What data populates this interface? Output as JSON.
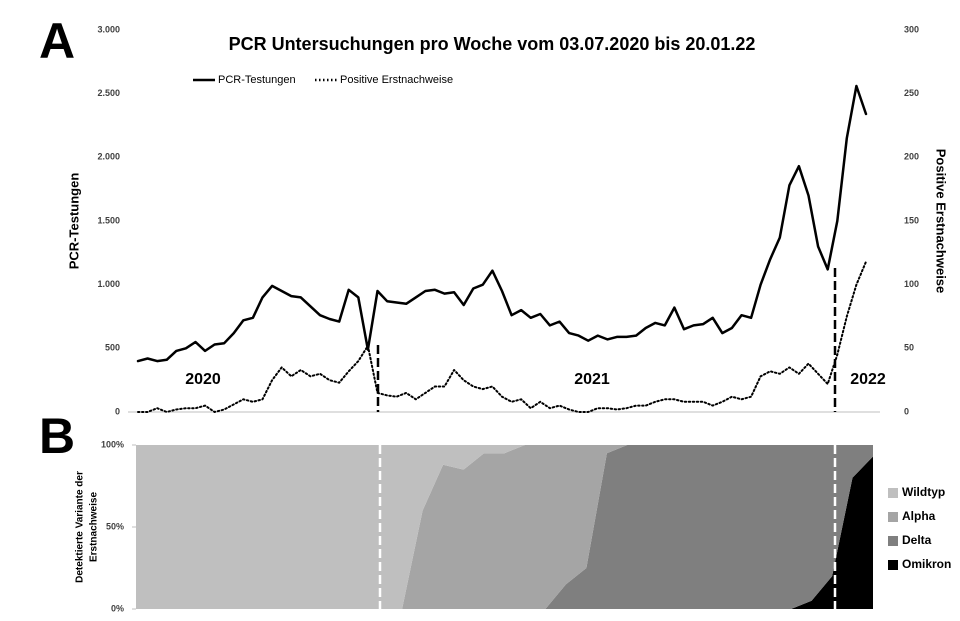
{
  "chart_data": [
    {
      "type": "line",
      "panel_label": "A",
      "title": "PCR Untersuchungen pro Woche vom 03.07.2020 bis 20.01.22",
      "y_label": "PCR-Testungen",
      "y2_label": "Positive Erstnachweise",
      "annotations": [
        "2020",
        "2021",
        "2022"
      ],
      "categories": [
        null,
        null,
        null,
        null,
        null,
        null,
        null,
        null,
        null,
        null,
        null,
        null,
        null,
        null,
        null,
        null,
        null,
        null,
        null,
        null,
        null,
        null,
        null,
        null,
        null,
        null,
        null,
        null,
        null,
        null,
        null,
        null,
        null,
        null,
        null,
        null,
        null,
        null,
        null,
        null,
        null,
        null,
        null,
        null,
        null,
        null,
        null,
        null,
        null,
        null,
        null,
        null,
        null,
        null,
        null,
        null,
        null,
        null,
        null,
        null,
        null,
        null,
        null,
        null,
        null,
        null,
        null,
        null,
        null,
        null,
        null,
        null,
        null,
        null,
        null,
        null,
        null
      ],
      "ylim": [
        0,
        3000
      ],
      "yticks": [
        0,
        500,
        {
          "value": 1000,
          "label": "1.000"
        },
        {
          "value": 1500,
          "label": "1.500"
        },
        {
          "value": 2000,
          "label": "2.000"
        },
        {
          "value": 2500,
          "label": "2.500"
        },
        {
          "value": 3000,
          "label": "3.000"
        }
      ],
      "y2lim": [
        0,
        300
      ],
      "y2ticks": [
        0,
        50,
        100,
        150,
        200,
        250,
        300
      ],
      "legend": "top",
      "series": [
        {
          "name": "PCR-Testungen",
          "color": "#000000",
          "style": "solid",
          "values": [
            400,
            420,
            400,
            410,
            480,
            500,
            550,
            480,
            530,
            540,
            620,
            720,
            740,
            900,
            990,
            950,
            910,
            900,
            830,
            760,
            730,
            710,
            960,
            900,
            490,
            950,
            870,
            860,
            850,
            900,
            950,
            960,
            930,
            940,
            840,
            970,
            1000,
            1110,
            950,
            760,
            800,
            740,
            770,
            680,
            710,
            620,
            600,
            560,
            600,
            570,
            590,
            590,
            600,
            660,
            700,
            680,
            820,
            650,
            680,
            690,
            740,
            620,
            660,
            760,
            740,
            1000,
            1200,
            1370,
            1780,
            1930,
            1700,
            1300,
            1120,
            1500,
            2150,
            2560,
            2340
          ]
        },
        {
          "name": "Positive Erstnachweise",
          "color": "#000000",
          "style": "dotted",
          "axis": "y2",
          "values": [
            0,
            0,
            3,
            0,
            2,
            3,
            3,
            5,
            0,
            2,
            6,
            10,
            8,
            10,
            25,
            35,
            28,
            33,
            28,
            30,
            25,
            23,
            32,
            40,
            52,
            15,
            13,
            12,
            15,
            10,
            15,
            20,
            20,
            33,
            25,
            20,
            18,
            20,
            12,
            8,
            10,
            3,
            8,
            3,
            5,
            2,
            0,
            0,
            3,
            3,
            2,
            3,
            5,
            5,
            8,
            10,
            10,
            8,
            8,
            8,
            5,
            8,
            12,
            10,
            12,
            28,
            32,
            30,
            35,
            30,
            38,
            30,
            22,
            45,
            75,
            100,
            118
          ]
        }
      ]
    },
    {
      "type": "area",
      "panel_label": "B",
      "stacked": true,
      "y_label": [
        "Detektierte Variante der",
        "Erstnachweise"
      ],
      "categories": [
        null,
        null,
        null,
        null,
        null,
        null,
        null,
        null,
        null,
        null,
        null,
        null,
        null,
        null,
        null,
        null,
        null,
        null,
        null,
        null,
        null,
        null,
        null,
        null,
        null,
        null,
        null,
        null,
        null,
        null,
        null,
        null,
        null,
        null,
        null,
        null,
        null
      ],
      "ylim": [
        0,
        100
      ],
      "yticks": [
        {
          "value": 0,
          "label": "0%"
        },
        {
          "value": 50,
          "label": "50%"
        },
        {
          "value": 100,
          "label": "100%"
        }
      ],
      "legend": "right",
      "series": [
        {
          "name": "Wildtyp",
          "color": "#bfbfbf",
          "values": [
            100,
            100,
            100,
            100,
            100,
            100,
            100,
            100,
            100,
            100,
            100,
            100,
            100,
            100,
            40,
            12,
            15,
            5,
            5,
            0,
            0,
            0,
            0,
            0,
            0,
            0,
            0,
            0,
            0,
            0,
            0,
            0,
            0,
            0,
            0,
            0,
            0
          ]
        },
        {
          "name": "Alpha",
          "color": "#a5a5a5",
          "values": [
            0,
            0,
            0,
            0,
            0,
            0,
            0,
            0,
            0,
            0,
            0,
            0,
            0,
            0,
            60,
            88,
            85,
            95,
            95,
            100,
            100,
            85,
            75,
            5,
            0,
            0,
            0,
            0,
            0,
            0,
            0,
            0,
            0,
            0,
            0,
            0,
            0
          ]
        },
        {
          "name": "Delta",
          "color": "#7f7f7f",
          "values": [
            0,
            0,
            0,
            0,
            0,
            0,
            0,
            0,
            0,
            0,
            0,
            0,
            0,
            0,
            0,
            0,
            0,
            0,
            0,
            0,
            0,
            15,
            25,
            95,
            100,
            100,
            100,
            100,
            100,
            100,
            100,
            100,
            100,
            95,
            80,
            20,
            7
          ]
        },
        {
          "name": "Omikron",
          "color": "#000000",
          "values": [
            0,
            0,
            0,
            0,
            0,
            0,
            0,
            0,
            0,
            0,
            0,
            0,
            0,
            0,
            0,
            0,
            0,
            0,
            0,
            0,
            0,
            0,
            0,
            0,
            0,
            0,
            0,
            0,
            0,
            0,
            0,
            0,
            0,
            5,
            20,
            80,
            93
          ]
        }
      ]
    }
  ]
}
